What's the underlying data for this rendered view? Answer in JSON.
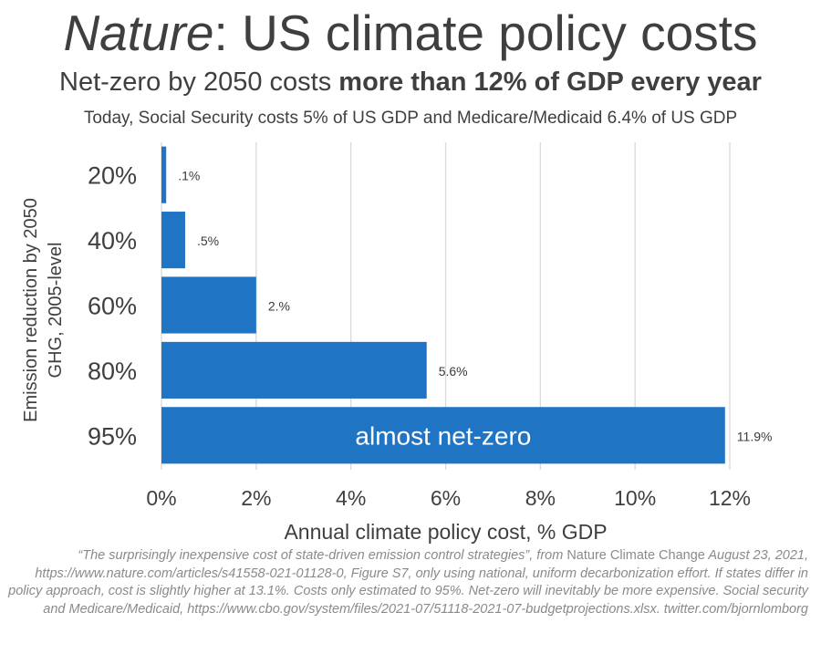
{
  "title": {
    "italic_part": "Nature",
    "rest": ": US climate policy costs"
  },
  "subtitle": {
    "normal": "Net-zero by 2050 costs ",
    "bold": "more than 12% of GDP every year"
  },
  "note": "Today, Social Security costs 5% of US GDP and Medicare/Medicaid 6.4% of US GDP",
  "source": {
    "p1": "“The surprisingly inexpensive cost of state-driven emission control strategies”, from ",
    "p2": "Nature Climate Change",
    "p3": " August 23, 2021, https://www.nature.com/articles/s41558-021-01128-0, Figure S7, only using national, uniform decarbonization effort. If states differ in policy approach, cost is slightly higher at 13.1%. Costs only estimated to 95%. Net-zero will inevitably be more expensive. Social security and Medicare/Medicaid, https://www.cbo.gov/system/files/2021-07/51118-2021-07-budgetprojections.xlsx. twitter.com/bjornlomborg"
  },
  "chart_data": {
    "type": "bar",
    "orientation": "horizontal",
    "categories": [
      "20%",
      "40%",
      "60%",
      "80%",
      "95%"
    ],
    "values": [
      0.1,
      0.5,
      2.0,
      5.6,
      11.9
    ],
    "data_labels": [
      ".1%",
      ".5%",
      "2.%",
      "5.6%",
      "11.9%"
    ],
    "bar_annotation": {
      "index": 4,
      "text": "almost net-zero"
    },
    "xlabel": "Annual climate policy cost, % GDP",
    "ylabel_lines": [
      "Emission reduction by 2050",
      "GHG, 2005-level"
    ],
    "xlim": [
      0,
      12
    ],
    "xticks": [
      0,
      2,
      4,
      6,
      8,
      10,
      12
    ],
    "xtick_labels": [
      "0%",
      "2%",
      "4%",
      "6%",
      "8%",
      "10%",
      "12%"
    ],
    "grid": true,
    "bar_color": "#1f74c4",
    "grid_color": "#d9d9d9"
  }
}
